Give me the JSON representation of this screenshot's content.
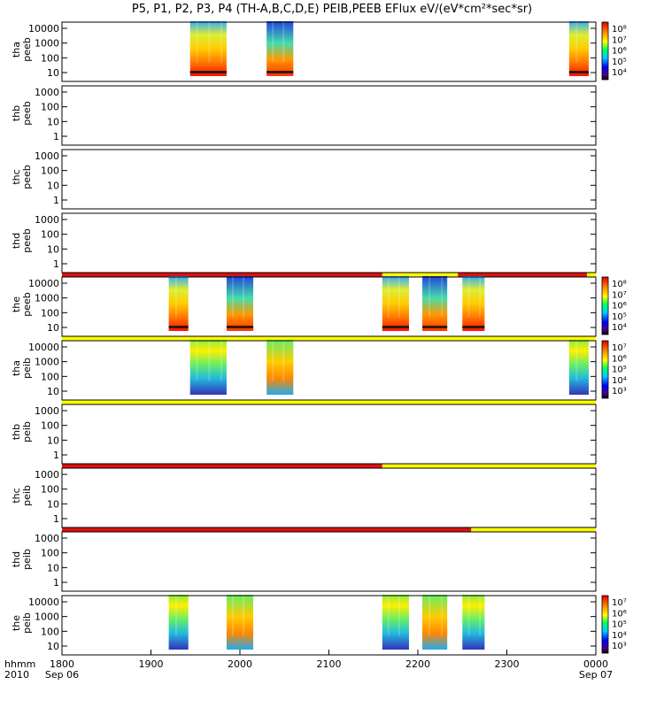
{
  "title": "P5, P1, P2, P3, P4 (TH-A,B,C,D,E) PEIB,PEEB EFlux eV/(eV*cm²*sec*sr)",
  "x_axis": {
    "label_lines": [
      "hhmm",
      "2010"
    ],
    "ticks": [
      {
        "t": 0,
        "label": "1800",
        "sub": "Sep 06"
      },
      {
        "t": 1,
        "label": "1900",
        "sub": ""
      },
      {
        "t": 2,
        "label": "2000",
        "sub": ""
      },
      {
        "t": 3,
        "label": "2100",
        "sub": ""
      },
      {
        "t": 4,
        "label": "2200",
        "sub": ""
      },
      {
        "t": 5,
        "label": "2300",
        "sub": ""
      },
      {
        "t": 6,
        "label": "0000",
        "sub": "Sep 07"
      }
    ]
  },
  "colors": {
    "bar_red": "#dd1111",
    "bar_yellow": "#ffff00",
    "spec_low": "#ff2200",
    "spec_mid": "#ffcc00",
    "spec_high": "#22bbff",
    "spec_top": "#3333cc"
  },
  "chart_data": [
    {
      "type": "heatmap",
      "probe": "tha",
      "species": "peeb",
      "ylabel_lines": [
        "tha",
        "peeb"
      ],
      "y_ticks": [
        "10000",
        "1000",
        "100",
        "10"
      ],
      "colorbar_ticks": [
        "10⁸",
        "10⁷",
        "10⁶",
        "10⁵",
        "10⁴"
      ],
      "blocks": [
        [
          1.44,
          1.85
        ],
        [
          2.3,
          2.6
        ],
        [
          5.7,
          5.92
        ]
      ],
      "status_bars": []
    },
    {
      "type": "heatmap",
      "probe": "thb",
      "species": "peeb",
      "ylabel_lines": [
        "thb",
        "peeb"
      ],
      "y_ticks": [
        "1000",
        "100",
        "10",
        "1"
      ],
      "colorbar_ticks": [],
      "blocks": [],
      "status_bars": []
    },
    {
      "type": "heatmap",
      "probe": "thc",
      "species": "peeb",
      "ylabel_lines": [
        "thc",
        "peeb"
      ],
      "y_ticks": [
        "1000",
        "100",
        "10",
        "1"
      ],
      "colorbar_ticks": [],
      "blocks": [],
      "status_bars": []
    },
    {
      "type": "heatmap",
      "probe": "thd",
      "species": "peeb",
      "ylabel_lines": [
        "thd",
        "peeb"
      ],
      "y_ticks": [
        "1000",
        "100",
        "10",
        "1"
      ],
      "colorbar_ticks": [],
      "blocks": [],
      "status_bars": []
    },
    {
      "type": "heatmap",
      "probe": "the",
      "species": "peeb",
      "ylabel_lines": [
        "the",
        "peeb"
      ],
      "y_ticks": [
        "10000",
        "1000",
        "100",
        "10"
      ],
      "colorbar_ticks": [
        "10⁸",
        "10⁷",
        "10⁶",
        "10⁵",
        "10⁴"
      ],
      "blocks": [
        [
          1.2,
          1.42
        ],
        [
          1.85,
          2.15
        ],
        [
          3.6,
          3.9
        ],
        [
          4.05,
          4.33
        ],
        [
          4.5,
          4.75
        ]
      ],
      "status_bars": [
        [
          0,
          3.6,
          "red"
        ],
        [
          3.6,
          4.45,
          "yellow"
        ],
        [
          4.45,
          5.9,
          "red"
        ],
        [
          5.9,
          6.1,
          "yellow"
        ]
      ]
    },
    {
      "type": "heatmap",
      "probe": "tha",
      "species": "peib",
      "ylabel_lines": [
        "tha",
        "peib"
      ],
      "y_ticks": [
        "10000",
        "1000",
        "100",
        "10"
      ],
      "colorbar_ticks": [
        "10⁷",
        "10⁶",
        "10⁵",
        "10⁴",
        "10³"
      ],
      "blocks": [
        [
          1.44,
          1.85
        ],
        [
          2.3,
          2.6
        ],
        [
          5.7,
          5.92
        ]
      ],
      "status_bars": [
        [
          0,
          6.1,
          "yellow"
        ]
      ]
    },
    {
      "type": "heatmap",
      "probe": "thb",
      "species": "peib",
      "ylabel_lines": [
        "thb",
        "peib"
      ],
      "y_ticks": [
        "1000",
        "100",
        "10",
        "1"
      ],
      "colorbar_ticks": [],
      "blocks": [],
      "status_bars": [
        [
          0,
          6.1,
          "yellow"
        ]
      ]
    },
    {
      "type": "heatmap",
      "probe": "thc",
      "species": "peib",
      "ylabel_lines": [
        "thc",
        "peib"
      ],
      "y_ticks": [
        "1000",
        "100",
        "10",
        "1"
      ],
      "colorbar_ticks": [],
      "blocks": [],
      "status_bars": [
        [
          0,
          3.6,
          "red"
        ],
        [
          3.6,
          6.1,
          "yellow"
        ]
      ]
    },
    {
      "type": "heatmap",
      "probe": "thd",
      "species": "peib",
      "ylabel_lines": [
        "thd",
        "peib"
      ],
      "y_ticks": [
        "1000",
        "100",
        "10",
        "1"
      ],
      "colorbar_ticks": [],
      "blocks": [],
      "status_bars": [
        [
          0,
          4.6,
          "red"
        ],
        [
          4.6,
          6.1,
          "yellow"
        ]
      ]
    },
    {
      "type": "heatmap",
      "probe": "the",
      "species": "peib",
      "ylabel_lines": [
        "the",
        "peib"
      ],
      "y_ticks": [
        "10000",
        "1000",
        "100",
        "10"
      ],
      "colorbar_ticks": [
        "10⁷",
        "10⁶",
        "10⁵",
        "10⁴",
        "10³"
      ],
      "blocks": [
        [
          1.2,
          1.42
        ],
        [
          1.85,
          2.15
        ],
        [
          3.6,
          3.9
        ],
        [
          4.05,
          4.33
        ],
        [
          4.5,
          4.75
        ]
      ],
      "status_bars": []
    }
  ]
}
